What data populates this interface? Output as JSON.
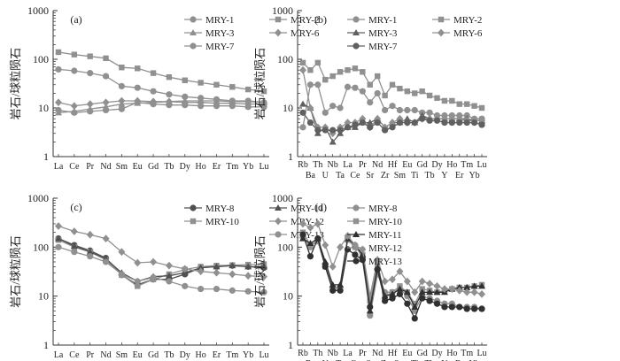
{
  "figure": {
    "ylabel": "岩石/球粒陨石"
  },
  "chart_data": [
    {
      "type": "line",
      "panel": "(a)",
      "scale": "log",
      "ylabel": "岩石/球粒陨石",
      "ylim": [
        1,
        1000
      ],
      "yticks": [
        "1",
        "10",
        "100",
        "1000"
      ],
      "categories": [
        "La",
        "Ce",
        "Pr",
        "Nd",
        "Sm",
        "Eu",
        "Gd",
        "Tb",
        "Dy",
        "Ho",
        "Er",
        "Tm",
        "Yb",
        "Lu"
      ],
      "legend": {
        "placement": "top-right",
        "columns": 2
      },
      "series": [
        {
          "name": "MRY-1",
          "marker": "circle",
          "color": "#909090",
          "values": [
            62,
            58,
            52,
            45,
            28,
            26,
            22,
            19,
            17,
            16,
            15,
            14,
            14,
            13
          ]
        },
        {
          "name": "MRY-2",
          "marker": "square",
          "color": "#909090",
          "values": [
            140,
            125,
            115,
            105,
            68,
            65,
            52,
            43,
            37,
            33,
            30,
            27,
            24,
            22
          ]
        },
        {
          "name": "MRY-3",
          "marker": "triangle",
          "color": "#909090",
          "values": [
            8,
            8.5,
            9.5,
            10.5,
            12,
            12.5,
            13,
            13.5,
            14,
            14,
            14,
            13.5,
            13.5,
            13
          ]
        },
        {
          "name": "MRY-6",
          "marker": "diamond",
          "color": "#909090",
          "values": [
            13,
            11,
            12,
            13,
            14,
            14,
            13.5,
            13.5,
            13,
            13,
            12.5,
            12.5,
            12,
            12
          ]
        },
        {
          "name": "MRY-7",
          "marker": "circle",
          "color": "#909090",
          "values": [
            9,
            8,
            8.5,
            9,
            9.5,
            13,
            12,
            11.5,
            11.5,
            11,
            11,
            11,
            10.5,
            10.5
          ]
        }
      ]
    },
    {
      "type": "line",
      "panel": "(b)",
      "scale": "log",
      "ylabel": "岩石/球粒陨石",
      "ylim": [
        1,
        1000
      ],
      "yticks": [
        "1",
        "10",
        "100",
        "1000"
      ],
      "categories": [
        "Rb",
        "Ba",
        "Th",
        "U",
        "Nb",
        "Ta",
        "La",
        "Ce",
        "Pr",
        "Sr",
        "Nd",
        "Zr",
        "Hf",
        "Sm",
        "Eu",
        "Ti",
        "Gd",
        "Tb",
        "Dy",
        "Y",
        "Ho",
        "Er",
        "Tm",
        "Yb",
        "Lu"
      ],
      "legend": {
        "placement": "top-right",
        "columns": 2
      },
      "series": [
        {
          "name": "MRY-1",
          "marker": "circle",
          "color": "#909090",
          "values": [
            4,
            30,
            30,
            8,
            11,
            10,
            27,
            26,
            22,
            13,
            20,
            9,
            11,
            9,
            9,
            9,
            8,
            8,
            7,
            7,
            7,
            7,
            7,
            6,
            6
          ]
        },
        {
          "name": "MRY-2",
          "marker": "square",
          "color": "#909090",
          "values": [
            85,
            60,
            85,
            38,
            45,
            55,
            60,
            65,
            55,
            30,
            45,
            18,
            30,
            25,
            22,
            20,
            22,
            18,
            16,
            14,
            14,
            12,
            12,
            11,
            10
          ]
        },
        {
          "name": "MRY-3",
          "marker": "triangle",
          "color": "#606060",
          "values": [
            12,
            10,
            3,
            4,
            2,
            3,
            4,
            4,
            5,
            5,
            6,
            4,
            5,
            5,
            6,
            5,
            7,
            6,
            6,
            6,
            6,
            6,
            6,
            5.5,
            5.5
          ]
        },
        {
          "name": "MRY-6",
          "marker": "diamond",
          "color": "#909090",
          "values": [
            60,
            10,
            4,
            4,
            3,
            4,
            5,
            5,
            6,
            4,
            6,
            4,
            5,
            6,
            5,
            5,
            6,
            6,
            6,
            6,
            6,
            6,
            5.5,
            5.5,
            5.5
          ]
        },
        {
          "name": "MRY-7",
          "marker": "circle",
          "color": "#606060",
          "values": [
            8,
            5,
            3.5,
            3.5,
            3.5,
            3.5,
            4,
            4.5,
            5,
            4,
            5,
            3.5,
            4,
            5,
            5,
            5,
            6,
            5.5,
            5.5,
            5,
            5,
            5,
            5,
            5,
            4.5
          ]
        }
      ]
    },
    {
      "type": "line",
      "panel": "(c)",
      "scale": "log",
      "ylabel": "岩石/球粒陨石",
      "ylim": [
        1,
        1000
      ],
      "yticks": [
        "1",
        "10",
        "100",
        "1000"
      ],
      "categories": [
        "La",
        "Ce",
        "Pr",
        "Nd",
        "Sm",
        "Eu",
        "Gd",
        "Tb",
        "Dy",
        "Ho",
        "Er",
        "Tm",
        "Yb",
        "Lu"
      ],
      "legend": {
        "placement": "top-right",
        "columns": 2
      },
      "series": [
        {
          "name": "MRY-8",
          "marker": "circle",
          "color": "#505050",
          "values": [
            150,
            110,
            85,
            60,
            27,
            17,
            22,
            22,
            28,
            38,
            40,
            42,
            40,
            38
          ]
        },
        {
          "name": "MRY-10",
          "marker": "square",
          "color": "#909090",
          "values": [
            140,
            100,
            80,
            55,
            27,
            16,
            22,
            28,
            35,
            40,
            42,
            43,
            44,
            45
          ]
        },
        {
          "name": "MRY-11",
          "marker": "triangle",
          "color": "#505050",
          "values": [
            150,
            105,
            80,
            58,
            30,
            20,
            25,
            26,
            30,
            38,
            40,
            42,
            40,
            40
          ]
        },
        {
          "name": "MRY-12",
          "marker": "diamond",
          "color": "#909090",
          "values": [
            270,
            210,
            180,
            150,
            80,
            48,
            50,
            42,
            36,
            32,
            30,
            28,
            26,
            25
          ]
        },
        {
          "name": "MRY-13",
          "marker": "circle",
          "color": "#909090",
          "values": [
            100,
            80,
            65,
            50,
            28,
            20,
            24,
            20,
            16,
            14,
            14,
            13,
            12.5,
            12
          ]
        }
      ]
    },
    {
      "type": "line",
      "panel": "(d)",
      "scale": "log",
      "ylabel": "岩石/球粒陨石",
      "ylim": [
        1,
        1000
      ],
      "yticks": [
        "1",
        "10",
        "100",
        "1000"
      ],
      "categories": [
        "Rb",
        "Ba",
        "Th",
        "U",
        "Nb",
        "Ta",
        "La",
        "Ce",
        "Pr",
        "Sr",
        "Nd",
        "Zr",
        "Hf",
        "Sm",
        "Eu",
        "Ti",
        "Gd",
        "Tb",
        "Dy",
        "Y",
        "Ho",
        "Er",
        "Tm",
        "Yb",
        "Lu"
      ],
      "legend": {
        "placement": "top-right",
        "columns": 1
      },
      "series": [
        {
          "name": "MRY-8",
          "marker": "circle",
          "color": "#909090",
          "values": [
            160,
            100,
            150,
            45,
            15,
            15,
            150,
            110,
            60,
            4,
            28,
            12,
            12,
            14,
            10,
            5,
            10,
            9,
            8,
            7,
            7,
            6,
            6,
            6,
            5.5
          ]
        },
        {
          "name": "MRY-10",
          "marker": "square",
          "color": "#909090",
          "values": [
            200,
            110,
            130,
            40,
            14,
            14,
            140,
            100,
            70,
            8,
            45,
            10,
            12,
            16,
            12,
            7,
            14,
            13,
            12,
            13,
            14,
            15,
            15,
            16,
            17
          ]
        },
        {
          "name": "MRY-11",
          "marker": "triangle",
          "color": "#303030",
          "values": [
            150,
            120,
            150,
            50,
            17,
            17,
            150,
            110,
            70,
            5,
            40,
            10,
            11,
            14,
            12,
            6,
            12,
            12,
            12,
            12,
            14,
            15,
            15,
            16,
            16
          ]
        },
        {
          "name": "MRY-12",
          "marker": "diamond",
          "color": "#909090",
          "values": [
            300,
            250,
            300,
            110,
            40,
            100,
            170,
            110,
            90,
            10,
            55,
            20,
            22,
            32,
            20,
            12,
            20,
            18,
            16,
            14,
            14,
            13,
            12,
            12,
            11
          ]
        },
        {
          "name": "MRY-13",
          "marker": "circle",
          "color": "#303030",
          "values": [
            180,
            65,
            150,
            40,
            13,
            13,
            90,
            70,
            55,
            6,
            35,
            8,
            9,
            11,
            7,
            3.5,
            9,
            8,
            7,
            6,
            6,
            6,
            5.5,
            5.5,
            5.5
          ]
        }
      ]
    }
  ]
}
